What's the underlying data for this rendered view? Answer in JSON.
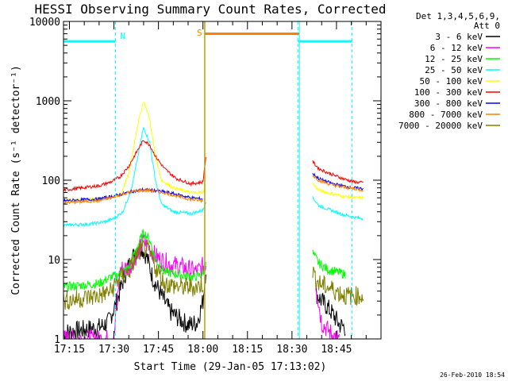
{
  "chart_data": {
    "type": "line",
    "title": "HESSI Observing Summary Count Rates, Corrected",
    "xlabel": "Start Time (29-Jan-05 17:13:02)",
    "ylabel": "Corrected Count Rate (s⁻¹ detector⁻¹)",
    "yscale": "log",
    "ylim": [
      1,
      10000
    ],
    "y_ticks": [
      "1",
      "10",
      "100",
      "1000",
      "10000"
    ],
    "x_ticks": [
      "17:15",
      "17:30",
      "17:45",
      "18:00",
      "18:15",
      "18:30",
      "18:45"
    ],
    "x_tick_minutes": [
      1035,
      1050,
      1065,
      1080,
      1095,
      1110,
      1125
    ],
    "xlim_minutes": [
      1033,
      1140
    ],
    "legend_title_1": "Det 1,3,4,5,6,9,",
    "legend_title_2": "Att 0",
    "legend_position": "outside-right",
    "series": [
      {
        "name": "3 - 6 keV",
        "color": "#000000",
        "points": [
          [
            1033,
            1.2
          ],
          [
            1045,
            1.4
          ],
          [
            1048,
            1.6
          ],
          [
            1051,
            3
          ],
          [
            1054,
            7
          ],
          [
            1057,
            12
          ],
          [
            1059,
            15
          ],
          [
            1061,
            11
          ],
          [
            1063,
            6
          ],
          [
            1066,
            3.5
          ],
          [
            1069,
            2.2
          ],
          [
            1072,
            1.8
          ],
          [
            1075,
            1.5
          ],
          [
            1078,
            1.6
          ],
          [
            1080,
            3
          ],
          [
            1081,
            8
          ]
        ],
        "points_b": [
          [
            1118,
            3.8
          ],
          [
            1120,
            3
          ],
          [
            1122,
            2.5
          ],
          [
            1124,
            2
          ],
          [
            1126,
            1.5
          ],
          [
            1128,
            1.4
          ]
        ]
      },
      {
        "name": "6 - 12 keV",
        "color": "#ff00ff",
        "points": [
          [
            1033,
            1
          ],
          [
            1050,
            1
          ],
          [
            1052,
            7.5
          ],
          [
            1055,
            8
          ],
          [
            1058,
            12
          ],
          [
            1060,
            17
          ],
          [
            1062,
            14
          ],
          [
            1064,
            11
          ],
          [
            1068,
            9
          ],
          [
            1073,
            8
          ],
          [
            1078,
            7
          ],
          [
            1081,
            9
          ]
        ],
        "points_b": [
          [
            1118,
            5
          ],
          [
            1120,
            1.6
          ],
          [
            1122,
            1.3
          ],
          [
            1124,
            1.1
          ],
          [
            1126,
            1
          ]
        ]
      },
      {
        "name": "12 - 25 keV",
        "color": "#00ff00",
        "points": [
          [
            1033,
            4.5
          ],
          [
            1045,
            5
          ],
          [
            1049,
            6
          ],
          [
            1052,
            6.5
          ],
          [
            1055,
            8
          ],
          [
            1058,
            15
          ],
          [
            1060,
            22
          ],
          [
            1062,
            18
          ],
          [
            1064,
            10
          ],
          [
            1067,
            7
          ],
          [
            1072,
            6.5
          ],
          [
            1077,
            6
          ],
          [
            1080,
            6.5
          ],
          [
            1081,
            10
          ]
        ],
        "points_b": [
          [
            1117,
            12
          ],
          [
            1119,
            9
          ],
          [
            1122,
            7.5
          ],
          [
            1125,
            7
          ],
          [
            1128,
            6.5
          ]
        ]
      },
      {
        "name": "25 - 50 keV",
        "color": "#00ffff",
        "points": [
          [
            1033,
            27
          ],
          [
            1042,
            28
          ],
          [
            1047,
            30
          ],
          [
            1050,
            33
          ],
          [
            1053,
            40
          ],
          [
            1056,
            80
          ],
          [
            1059,
            300
          ],
          [
            1060,
            460
          ],
          [
            1062,
            300
          ],
          [
            1064,
            100
          ],
          [
            1066,
            50
          ],
          [
            1070,
            40
          ],
          [
            1076,
            38
          ],
          [
            1080,
            42
          ],
          [
            1081,
            55
          ]
        ],
        "points_b": [
          [
            1117,
            60
          ],
          [
            1119,
            48
          ],
          [
            1123,
            42
          ],
          [
            1127,
            37
          ],
          [
            1131,
            34
          ],
          [
            1134,
            33
          ]
        ]
      },
      {
        "name": "50 - 100 keV",
        "color": "#ffff00",
        "points": [
          [
            1033,
            55
          ],
          [
            1045,
            58
          ],
          [
            1049,
            60
          ],
          [
            1052,
            63
          ],
          [
            1055,
            120
          ],
          [
            1058,
            500
          ],
          [
            1060,
            1000
          ],
          [
            1062,
            600
          ],
          [
            1064,
            200
          ],
          [
            1066,
            100
          ],
          [
            1070,
            80
          ],
          [
            1076,
            70
          ],
          [
            1080,
            70
          ],
          [
            1081,
            90
          ]
        ],
        "points_b": [
          [
            1117,
            90
          ],
          [
            1119,
            75
          ],
          [
            1123,
            68
          ],
          [
            1127,
            63
          ],
          [
            1131,
            60
          ],
          [
            1134,
            60
          ]
        ]
      },
      {
        "name": "100 - 300 keV",
        "color": "#ff0000",
        "points": [
          [
            1033,
            75
          ],
          [
            1045,
            85
          ],
          [
            1049,
            95
          ],
          [
            1052,
            110
          ],
          [
            1055,
            150
          ],
          [
            1058,
            240
          ],
          [
            1060,
            320
          ],
          [
            1062,
            280
          ],
          [
            1064,
            200
          ],
          [
            1067,
            140
          ],
          [
            1071,
            105
          ],
          [
            1076,
            90
          ],
          [
            1080,
            95
          ],
          [
            1081,
            200
          ]
        ],
        "points_b": [
          [
            1117,
            170
          ],
          [
            1119,
            140
          ],
          [
            1123,
            120
          ],
          [
            1127,
            105
          ],
          [
            1131,
            95
          ],
          [
            1134,
            93
          ]
        ]
      },
      {
        "name": "300 - 800 keV",
        "color": "#0000ff",
        "points": [
          [
            1033,
            55
          ],
          [
            1045,
            58
          ],
          [
            1049,
            62
          ],
          [
            1052,
            66
          ],
          [
            1056,
            72
          ],
          [
            1060,
            76
          ],
          [
            1064,
            74
          ],
          [
            1068,
            70
          ],
          [
            1072,
            65
          ],
          [
            1076,
            60
          ],
          [
            1080,
            58
          ]
        ],
        "points_b": [
          [
            1117,
            120
          ],
          [
            1119,
            105
          ],
          [
            1123,
            92
          ],
          [
            1127,
            85
          ],
          [
            1131,
            80
          ],
          [
            1134,
            78
          ]
        ]
      },
      {
        "name": "800 - 7000 keV",
        "color": "#ff8000",
        "points": [
          [
            1033,
            52
          ],
          [
            1045,
            55
          ],
          [
            1049,
            60
          ],
          [
            1052,
            65
          ],
          [
            1056,
            72
          ],
          [
            1060,
            75
          ],
          [
            1064,
            73
          ],
          [
            1068,
            68
          ],
          [
            1072,
            62
          ],
          [
            1076,
            57
          ],
          [
            1080,
            55
          ]
        ],
        "points_b": [
          [
            1117,
            115
          ],
          [
            1119,
            100
          ],
          [
            1123,
            88
          ],
          [
            1127,
            82
          ],
          [
            1131,
            78
          ],
          [
            1134,
            75
          ]
        ]
      },
      {
        "name": "7000 - 20000 keV",
        "color": "#808000",
        "points": [
          [
            1033,
            3
          ],
          [
            1045,
            3.5
          ],
          [
            1049,
            4
          ],
          [
            1052,
            6
          ],
          [
            1055,
            7
          ],
          [
            1058,
            12
          ],
          [
            1060,
            14
          ],
          [
            1062,
            12
          ],
          [
            1064,
            8
          ],
          [
            1067,
            5
          ],
          [
            1072,
            4.5
          ],
          [
            1078,
            4.5
          ],
          [
            1080,
            5
          ]
        ],
        "points_b": [
          [
            1117,
            7
          ],
          [
            1119,
            5
          ],
          [
            1122,
            4.5
          ],
          [
            1125,
            4
          ],
          [
            1128,
            3.5
          ],
          [
            1134,
            3.5
          ]
        ]
      }
    ],
    "annotations": {
      "night_label": "N",
      "saa_label": "S",
      "night_color": "#00ffff",
      "saa_color": "#ff8000",
      "line_color": "#c0a000",
      "night_intervals_minutes": [
        [
          1033,
          1050.5
        ],
        [
          1112,
          1130.2
        ]
      ],
      "saa_intervals_minutes": [
        [
          1080.6,
          1112.5
        ]
      ]
    },
    "footer_date": "26-Feb-2010 18:54"
  }
}
